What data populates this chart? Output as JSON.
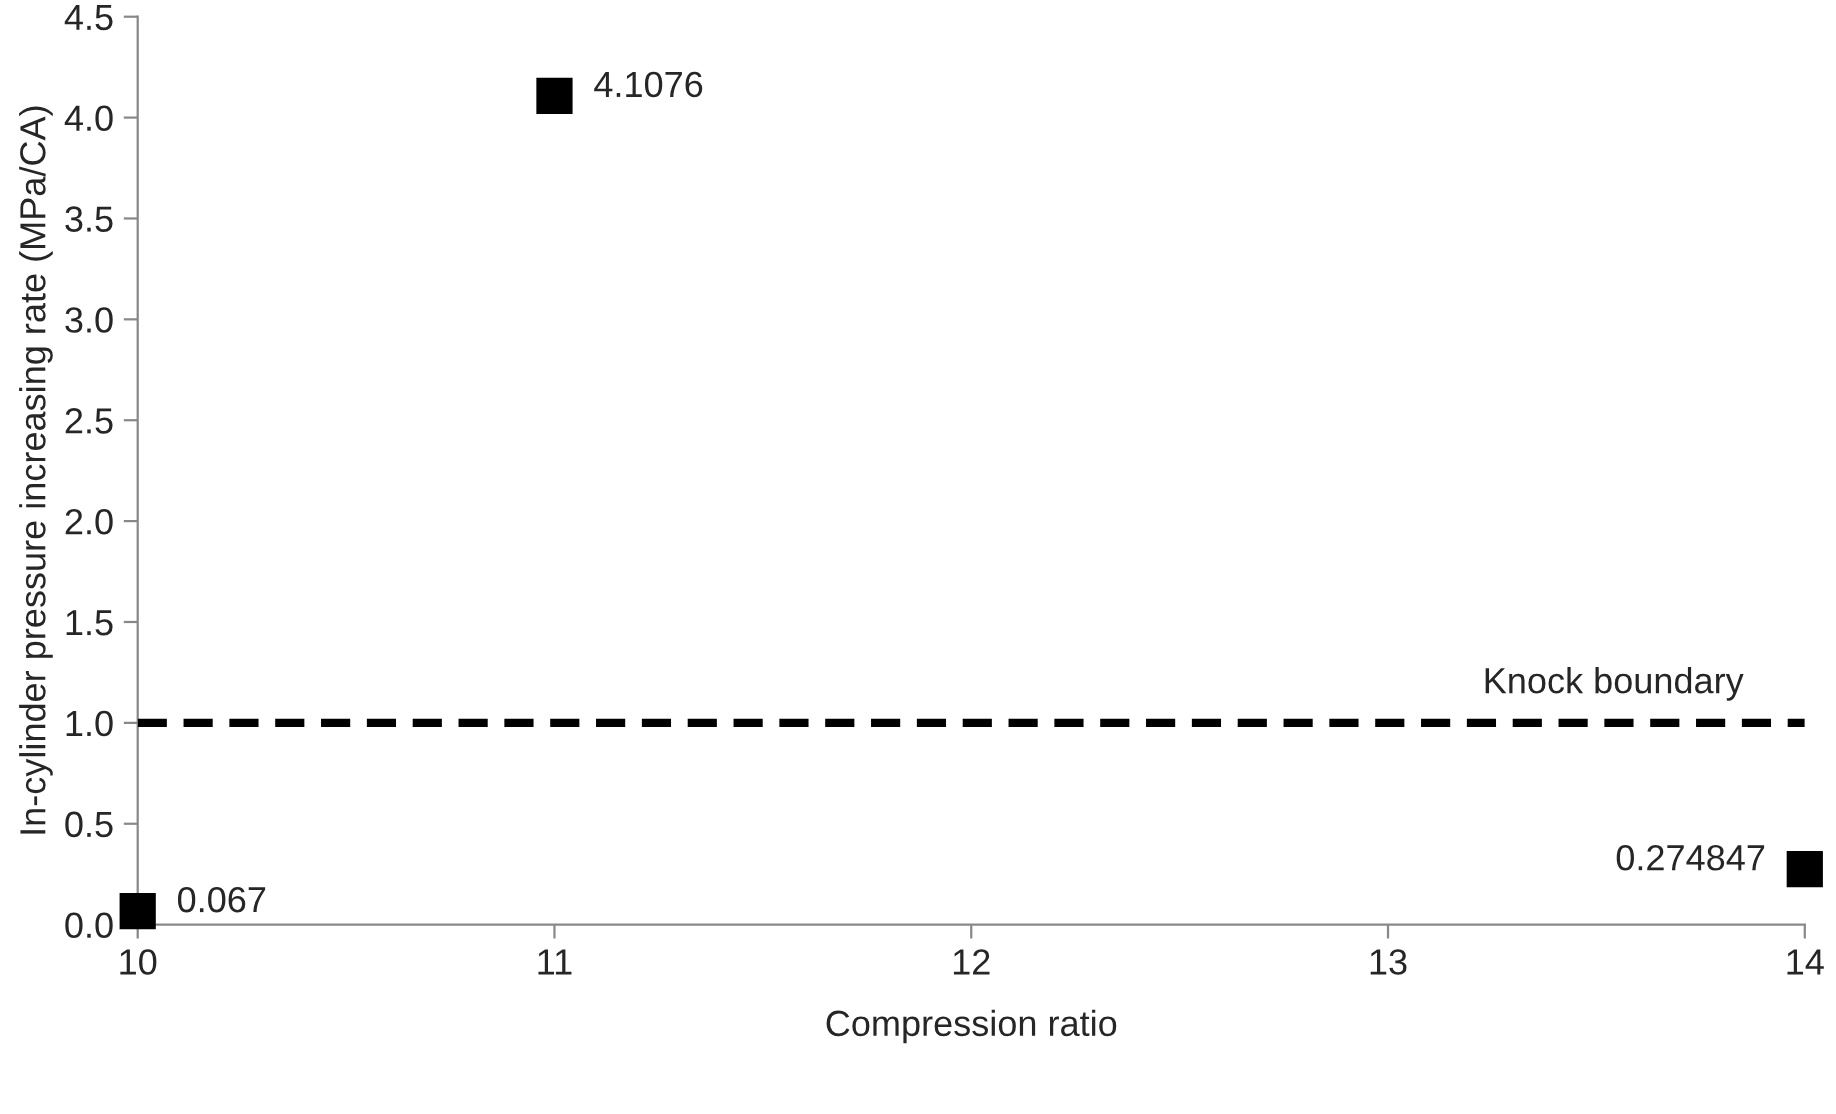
{
  "chart_data": {
    "type": "scatter",
    "xlabel": "Compression ratio",
    "ylabel": "In-cylinder pressure increasing rate (MPa/CA)",
    "x": [
      10,
      11,
      14
    ],
    "series": [
      {
        "color": "#000000",
        "values": [
          0.067,
          4.1076,
          0.274847
        ]
      }
    ],
    "data_labels": true,
    "marker": "square",
    "xlim": [
      10,
      14
    ],
    "xticks": [
      10,
      11,
      12,
      13,
      14
    ],
    "ylim": [
      0,
      4.5
    ],
    "yticks": [
      {
        "value": 0,
        "label": "0.0"
      },
      {
        "value": 0.5,
        "label": "0.5"
      },
      {
        "value": 1,
        "label": "1.0"
      },
      {
        "value": 1.5,
        "label": "1.5"
      },
      {
        "value": 2,
        "label": "2.0"
      },
      {
        "value": 2.5,
        "label": "2.5"
      },
      {
        "value": 3,
        "label": "3.0"
      },
      {
        "value": 3.5,
        "label": "3.5"
      },
      {
        "value": 4,
        "label": "4.0"
      },
      {
        "value": 4.5,
        "label": "4.5"
      }
    ],
    "ref_lines": [
      {
        "axis": "y",
        "value": 1,
        "label": "Knock boundary",
        "color": "#000000",
        "line_style": "dashed"
      }
    ],
    "grid": false,
    "legend": false
  }
}
